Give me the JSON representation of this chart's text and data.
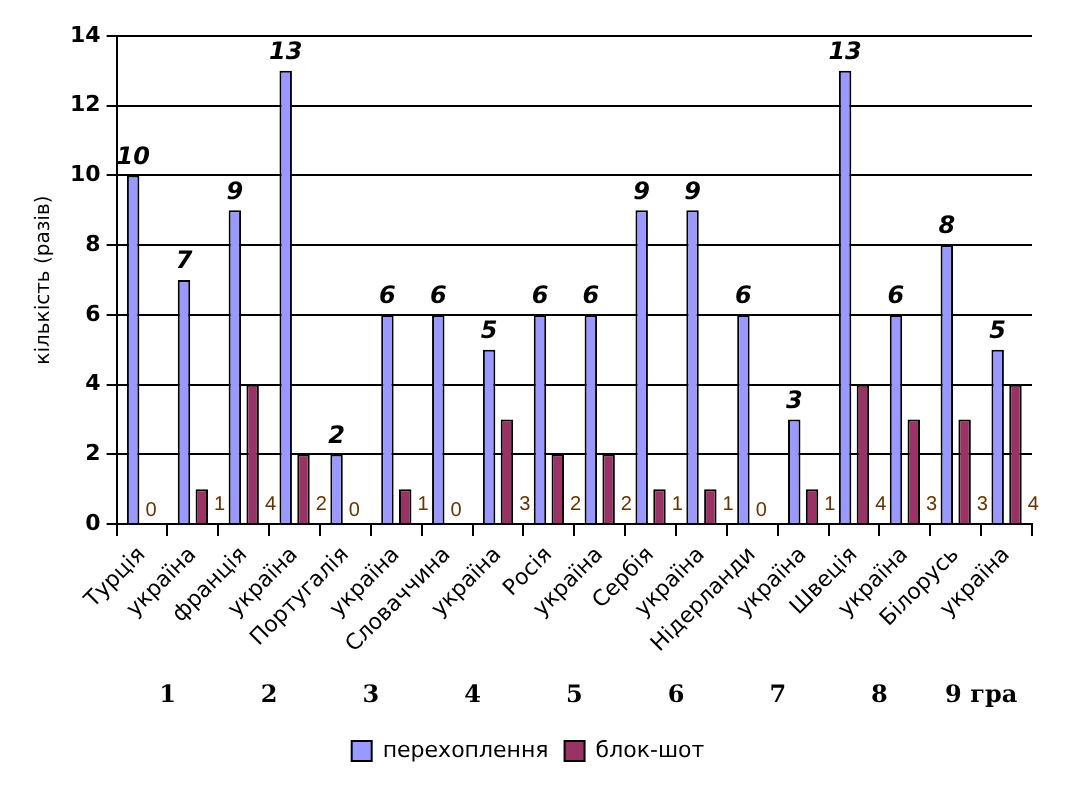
{
  "chart_data": {
    "type": "bar",
    "ylabel": "кількість (разів)",
    "categories": [
      "Турція",
      "україна",
      "франція",
      "україна",
      "Португалія",
      "україна",
      "Словаччина",
      "україна",
      "Росія",
      "україна",
      "Сербія",
      "україна",
      "Нідерланди",
      "україна",
      "Швеція",
      "україна",
      "Білорусь",
      "україна"
    ],
    "series": [
      {
        "name": "перехоплення",
        "color": "#9999ff",
        "values": [
          10,
          7,
          9,
          13,
          2,
          6,
          6,
          5,
          6,
          6,
          9,
          9,
          6,
          3,
          13,
          6,
          8,
          5
        ]
      },
      {
        "name": "блок-шот",
        "color": "#993366",
        "values": [
          0,
          1,
          4,
          2,
          0,
          1,
          0,
          3,
          2,
          2,
          1,
          1,
          0,
          1,
          4,
          3,
          3,
          4
        ]
      }
    ],
    "ylim": [
      0,
      14
    ],
    "yticks": [
      0,
      2,
      4,
      6,
      8,
      10,
      12,
      14
    ],
    "grid": "y",
    "legend": "bottom",
    "data_labels": true,
    "annotations": [
      "1",
      "2",
      "3",
      "4",
      "5",
      "6",
      "7",
      "8",
      "9 гра"
    ]
  }
}
